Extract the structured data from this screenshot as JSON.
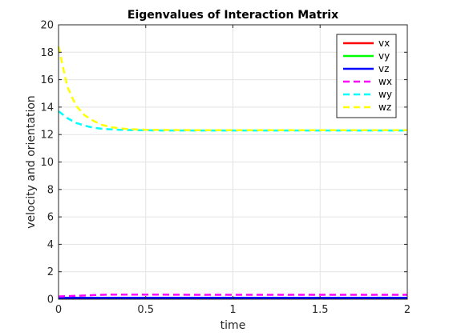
{
  "chart_data": {
    "type": "line",
    "title": "Eigenvalues of Interaction Matrix",
    "xlabel": "time",
    "ylabel": "velocity and orientation",
    "xlim": [
      0,
      2
    ],
    "ylim": [
      0,
      20
    ],
    "xticks": [
      0,
      0.5,
      1,
      1.5,
      2
    ],
    "xtick_labels": [
      "0",
      "0.5",
      "1",
      "1.5",
      "2"
    ],
    "yticks": [
      0,
      2,
      4,
      6,
      8,
      10,
      12,
      14,
      16,
      18,
      20
    ],
    "ytick_labels": [
      "0",
      "2",
      "4",
      "6",
      "8",
      "10",
      "12",
      "14",
      "16",
      "18",
      "20"
    ],
    "grid": true,
    "legend_position": "top-right",
    "x": [
      0,
      0.05,
      0.1,
      0.15,
      0.2,
      0.25,
      0.3,
      0.35,
      0.4,
      0.5,
      0.6,
      0.8,
      1.0,
      1.2,
      1.4,
      1.6,
      1.8,
      2.0
    ],
    "series": [
      {
        "name": "vx",
        "color": "#ff0000",
        "style": "solid",
        "values": [
          0.05,
          0.05,
          0.05,
          0.05,
          0.05,
          0.05,
          0.05,
          0.05,
          0.05,
          0.05,
          0.05,
          0.05,
          0.05,
          0.05,
          0.05,
          0.05,
          0.05,
          0.05
        ]
      },
      {
        "name": "vy",
        "color": "#00ff00",
        "style": "solid",
        "values": [
          0.06,
          0.06,
          0.06,
          0.06,
          0.06,
          0.06,
          0.06,
          0.06,
          0.06,
          0.06,
          0.06,
          0.06,
          0.06,
          0.06,
          0.06,
          0.06,
          0.06,
          0.06
        ]
      },
      {
        "name": "vz",
        "color": "#0000ff",
        "style": "solid",
        "values": [
          0.1,
          0.1,
          0.1,
          0.1,
          0.1,
          0.1,
          0.1,
          0.1,
          0.1,
          0.1,
          0.1,
          0.1,
          0.1,
          0.1,
          0.1,
          0.1,
          0.1,
          0.1
        ]
      },
      {
        "name": "wx",
        "color": "#ff00ff",
        "style": "dashed",
        "values": [
          0.2,
          0.22,
          0.25,
          0.27,
          0.3,
          0.32,
          0.33,
          0.34,
          0.34,
          0.33,
          0.33,
          0.32,
          0.32,
          0.32,
          0.32,
          0.32,
          0.32,
          0.32
        ]
      },
      {
        "name": "wy",
        "color": "#00ffff",
        "style": "dashed",
        "values": [
          13.7,
          13.2,
          12.85,
          12.65,
          12.5,
          12.42,
          12.38,
          12.35,
          12.33,
          12.31,
          12.3,
          12.3,
          12.3,
          12.3,
          12.3,
          12.3,
          12.3,
          12.3
        ]
      },
      {
        "name": "wz",
        "color": "#ffff00",
        "style": "dashed",
        "values": [
          18.4,
          15.5,
          14.1,
          13.4,
          13.0,
          12.7,
          12.55,
          12.45,
          12.4,
          12.35,
          12.33,
          12.32,
          12.32,
          12.32,
          12.32,
          12.32,
          12.32,
          12.32
        ]
      }
    ]
  }
}
